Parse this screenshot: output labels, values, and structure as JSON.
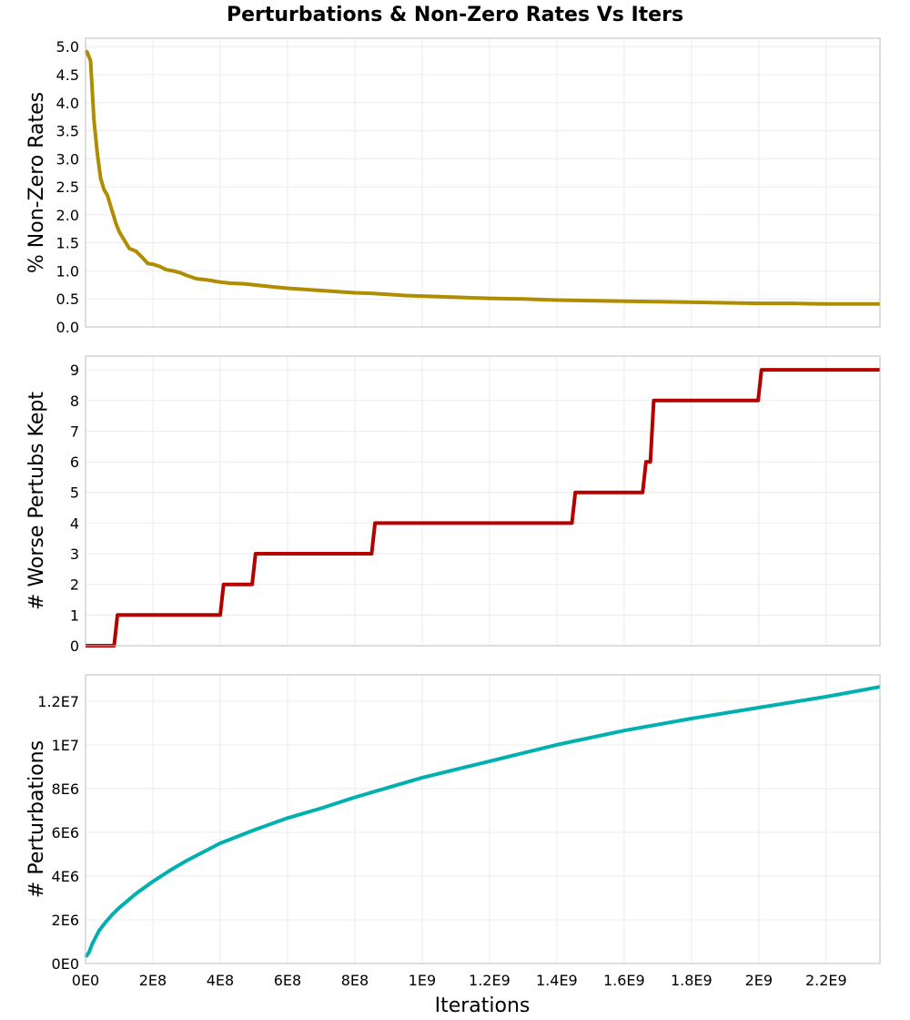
{
  "chart_data": {
    "type": "line",
    "title": "Perturbations & Non-Zero Rates Vs Iters",
    "xlabel": "Iterations",
    "xlim": [
      0,
      2360000000
    ],
    "x_ticks": [
      {
        "value": 0,
        "label": "0E0"
      },
      {
        "value": 200000000,
        "label": "2E8"
      },
      {
        "value": 400000000,
        "label": "4E8"
      },
      {
        "value": 600000000,
        "label": "6E8"
      },
      {
        "value": 800000000,
        "label": "8E8"
      },
      {
        "value": 1000000000,
        "label": "1E9"
      },
      {
        "value": 1200000000,
        "label": "1.2E9"
      },
      {
        "value": 1400000000,
        "label": "1.4E9"
      },
      {
        "value": 1600000000,
        "label": "1.6E9"
      },
      {
        "value": 1800000000,
        "label": "1.8E9"
      },
      {
        "value": 2000000000,
        "label": "2E9"
      },
      {
        "value": 2200000000,
        "label": "2.2E9"
      }
    ],
    "grid": true,
    "panels": [
      {
        "ylabel": "% Non-Zero Rates",
        "ylim": [
          0,
          5.15
        ],
        "color": "#b08d00",
        "y_ticks": [
          {
            "value": 0,
            "label": "0.0"
          },
          {
            "value": 0.5,
            "label": "0.5"
          },
          {
            "value": 1.0,
            "label": "1.0"
          },
          {
            "value": 1.5,
            "label": "1.5"
          },
          {
            "value": 2.0,
            "label": "2.0"
          },
          {
            "value": 2.5,
            "label": "2.5"
          },
          {
            "value": 3.0,
            "label": "3.0"
          },
          {
            "value": 3.5,
            "label": "3.5"
          },
          {
            "value": 4.0,
            "label": "4.0"
          },
          {
            "value": 4.5,
            "label": "4.5"
          },
          {
            "value": 5.0,
            "label": "5.0"
          }
        ],
        "x": [
          0,
          5000000,
          15000000,
          25000000,
          35000000,
          45000000,
          55000000,
          65000000,
          75000000,
          90000000,
          100000000,
          115000000,
          130000000,
          150000000,
          170000000,
          185000000,
          200000000,
          220000000,
          240000000,
          260000000,
          280000000,
          300000000,
          330000000,
          360000000,
          380000000,
          400000000,
          430000000,
          470000000,
          500000000,
          550000000,
          600000000,
          650000000,
          700000000,
          750000000,
          800000000,
          850000000,
          900000000,
          950000000,
          1000000000,
          1100000000,
          1200000000,
          1300000000,
          1400000000,
          1500000000,
          1600000000,
          1700000000,
          1800000000,
          1900000000,
          2000000000,
          2100000000,
          2200000000,
          2300000000,
          2360000000
        ],
        "y": [
          4.93,
          4.9,
          4.75,
          3.7,
          3.1,
          2.65,
          2.45,
          2.35,
          2.15,
          1.85,
          1.7,
          1.55,
          1.4,
          1.35,
          1.23,
          1.13,
          1.12,
          1.08,
          1.02,
          1.0,
          0.97,
          0.92,
          0.86,
          0.84,
          0.82,
          0.8,
          0.78,
          0.77,
          0.75,
          0.72,
          0.69,
          0.67,
          0.65,
          0.63,
          0.61,
          0.6,
          0.58,
          0.56,
          0.55,
          0.53,
          0.51,
          0.5,
          0.48,
          0.47,
          0.46,
          0.45,
          0.44,
          0.43,
          0.42,
          0.42,
          0.41,
          0.41,
          0.41
        ]
      },
      {
        "ylabel": "# Worse Pertubs Kept",
        "ylim": [
          0,
          9.45
        ],
        "color": "#b50000",
        "y_ticks": [
          {
            "value": 0,
            "label": "0"
          },
          {
            "value": 1,
            "label": "1"
          },
          {
            "value": 2,
            "label": "2"
          },
          {
            "value": 3,
            "label": "3"
          },
          {
            "value": 4,
            "label": "4"
          },
          {
            "value": 5,
            "label": "5"
          },
          {
            "value": 6,
            "label": "6"
          },
          {
            "value": 7,
            "label": "7"
          },
          {
            "value": 8,
            "label": "8"
          },
          {
            "value": 9,
            "label": "9"
          }
        ],
        "x": [
          0,
          85000000,
          95000000,
          400000000,
          410000000,
          495000000,
          505000000,
          850000000,
          860000000,
          1445000000,
          1455000000,
          1655000000,
          1665000000,
          1678000000,
          1688000000,
          1998000000,
          2008000000,
          2360000000
        ],
        "y": [
          0,
          0,
          1,
          1,
          2,
          2,
          3,
          3,
          4,
          4,
          5,
          5,
          6,
          6,
          8,
          8,
          9,
          9
        ]
      },
      {
        "ylabel": "# Perturbations",
        "ylim": [
          0,
          13200000
        ],
        "color": "#00b0b0",
        "y_ticks": [
          {
            "value": 0,
            "label": "0E0"
          },
          {
            "value": 2000000,
            "label": "2E6"
          },
          {
            "value": 4000000,
            "label": "4E6"
          },
          {
            "value": 6000000,
            "label": "6E6"
          },
          {
            "value": 8000000,
            "label": "8E6"
          },
          {
            "value": 10000000,
            "label": "1E7"
          },
          {
            "value": 12000000,
            "label": "1.2E7"
          }
        ],
        "x": [
          0,
          10000000,
          20000000,
          40000000,
          60000000,
          80000000,
          100000000,
          150000000,
          200000000,
          250000000,
          300000000,
          400000000,
          500000000,
          600000000,
          700000000,
          800000000,
          900000000,
          1000000000,
          1200000000,
          1400000000,
          1600000000,
          1800000000,
          2000000000,
          2200000000,
          2360000000
        ],
        "y": [
          300000,
          500000,
          900000,
          1500000,
          1900000,
          2250000,
          2550000,
          3200000,
          3750000,
          4250000,
          4700000,
          5500000,
          6100000,
          6650000,
          7100000,
          7600000,
          8050000,
          8500000,
          9250000,
          10000000,
          10650000,
          11200000,
          11700000,
          12200000,
          12650000
        ]
      }
    ]
  }
}
